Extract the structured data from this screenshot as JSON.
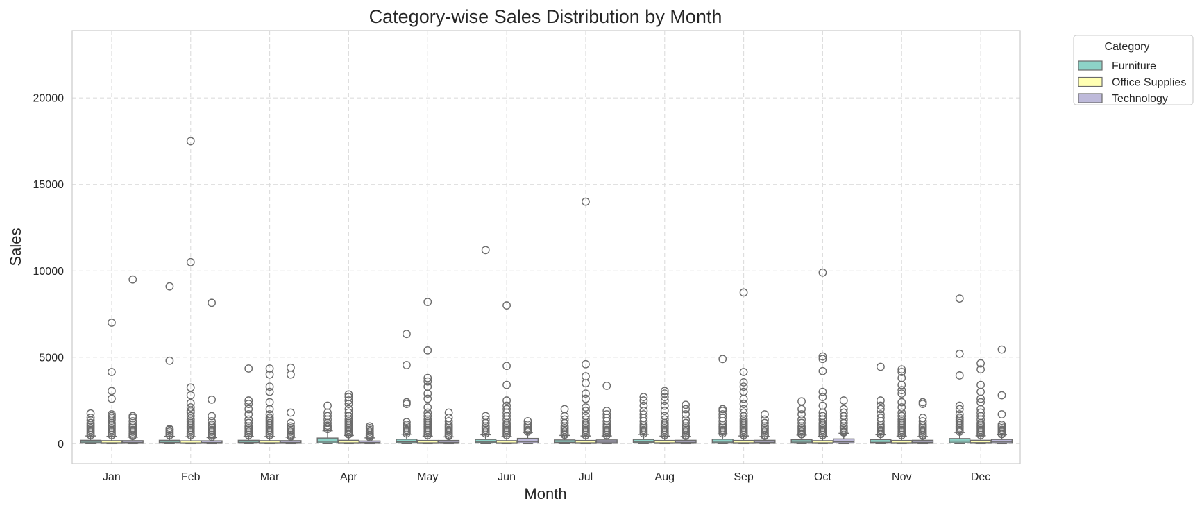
{
  "chart_data": {
    "type": "box",
    "title": "Category-wise Sales Distribution by Month",
    "xlabel": "Month",
    "ylabel": "Sales",
    "categories": [
      "Jan",
      "Feb",
      "Mar",
      "Apr",
      "May",
      "Jun",
      "Jul",
      "Aug",
      "Sep",
      "Oct",
      "Nov",
      "Dec"
    ],
    "ylim": [
      -1150,
      23900
    ],
    "yticks": [
      0,
      5000,
      10000,
      15000,
      20000
    ],
    "ytick_labels": [
      "0",
      "5000",
      "10000",
      "15000",
      "20000"
    ],
    "grid": true,
    "legend": {
      "title": "Category",
      "placement": "outside-top-right"
    },
    "series": [
      {
        "name": "Furniture",
        "color": "#8dd3c7",
        "boxes": [
          {
            "q1": 30,
            "median": 90,
            "q3": 200,
            "whisker_low": 2,
            "whisker_high": 450,
            "outliers": [
              500,
              600,
              700,
              800,
              900,
              1000,
              1100,
              1200,
              1350,
              1500,
              1750
            ]
          },
          {
            "q1": 30,
            "median": 80,
            "q3": 200,
            "whisker_low": 2,
            "whisker_high": 430,
            "outliers": [
              500,
              600,
              700,
              800,
              850,
              4800,
              9100
            ]
          },
          {
            "q1": 30,
            "median": 80,
            "q3": 200,
            "whisker_low": 2,
            "whisker_high": 430,
            "outliers": [
              500,
              600,
              700,
              800,
              900,
              1000,
              1200,
              1400,
              1700,
              2000,
              2300,
              2500,
              4350
            ]
          },
          {
            "q1": 50,
            "median": 140,
            "q3": 330,
            "whisker_low": 2,
            "whisker_high": 750,
            "outliers": [
              850,
              950,
              1050,
              1200,
              1400,
              1600,
              1800,
              2200
            ]
          },
          {
            "q1": 40,
            "median": 110,
            "q3": 260,
            "whisker_low": 2,
            "whisker_high": 550,
            "outliers": [
              600,
              700,
              800,
              900,
              1000,
              1100,
              1250,
              2300,
              2400,
              4550,
              6350
            ]
          },
          {
            "q1": 40,
            "median": 100,
            "q3": 250,
            "whisker_low": 2,
            "whisker_high": 520,
            "outliers": [
              600,
              700,
              800,
              900,
              1000,
              1200,
              1400,
              1600,
              11200
            ]
          },
          {
            "q1": 30,
            "median": 80,
            "q3": 220,
            "whisker_low": 2,
            "whisker_high": 480,
            "outliers": [
              520,
              600,
              700,
              800,
              900,
              1000,
              1200,
              1400,
              1600,
              2000
            ]
          },
          {
            "q1": 40,
            "median": 100,
            "q3": 250,
            "whisker_low": 2,
            "whisker_high": 540,
            "outliers": [
              600,
              700,
              800,
              900,
              1000,
              1100,
              1300,
              1500,
              1700,
              1900,
              2200,
              2500,
              2700
            ]
          },
          {
            "q1": 30,
            "median": 90,
            "q3": 260,
            "whisker_low": 2,
            "whisker_high": 560,
            "outliers": [
              600,
              700,
              800,
              900,
              1000,
              1100,
              1300,
              1500,
              1700,
              1900,
              2000,
              4900
            ]
          },
          {
            "q1": 30,
            "median": 90,
            "q3": 230,
            "whisker_low": 2,
            "whisker_high": 500,
            "outliers": [
              550,
              600,
              700,
              800,
              900,
              1000,
              1200,
              1400,
              1700,
              2000,
              2450
            ]
          },
          {
            "q1": 30,
            "median": 80,
            "q3": 240,
            "whisker_low": 2,
            "whisker_high": 520,
            "outliers": [
              560,
              600,
              700,
              800,
              900,
              1000,
              1100,
              1300,
              1500,
              1700,
              2000,
              2200,
              2500,
              4450
            ]
          },
          {
            "q1": 50,
            "median": 150,
            "q3": 300,
            "whisker_low": 2,
            "whisker_high": 650,
            "outliers": [
              700,
              800,
              900,
              1000,
              1100,
              1200,
              1300,
              1400,
              1500,
              1700,
              2000,
              2200,
              3950,
              5200,
              8400
            ]
          }
        ]
      },
      {
        "name": "Office Supplies",
        "color": "#ffffb3",
        "boxes": [
          {
            "q1": 15,
            "median": 50,
            "q3": 180,
            "whisker_low": 1,
            "whisker_high": 430,
            "outliers": [
              500,
              600,
              700,
              800,
              900,
              1000,
              1100,
              1200,
              1400,
              1500,
              1600,
              1700,
              2600,
              3050,
              4150,
              7000
            ]
          },
          {
            "q1": 15,
            "median": 45,
            "q3": 170,
            "whisker_low": 1,
            "whisker_high": 410,
            "outliers": [
              500,
              600,
              700,
              800,
              900,
              1000,
              1100,
              1200,
              1300,
              1400,
              1600,
              1800,
              1900,
              2100,
              2350,
              2800,
              3250,
              10500,
              17500
            ]
          },
          {
            "q1": 15,
            "median": 50,
            "q3": 180,
            "whisker_low": 1,
            "whisker_high": 420,
            "outliers": [
              500,
              600,
              700,
              800,
              900,
              1000,
              1100,
              1200,
              1300,
              1400,
              1500,
              1700,
              2000,
              2400,
              3000,
              3300,
              4000,
              4350
            ]
          },
          {
            "q1": 15,
            "median": 50,
            "q3": 200,
            "whisker_low": 1,
            "whisker_high": 480,
            "outliers": [
              550,
              600,
              700,
              800,
              900,
              1000,
              1100,
              1200,
              1300,
              1400,
              1600,
              1800,
              2000,
              2300,
              2500,
              2700,
              2850
            ]
          },
          {
            "q1": 15,
            "median": 50,
            "q3": 190,
            "whisker_low": 1,
            "whisker_high": 440,
            "outliers": [
              500,
              600,
              700,
              800,
              900,
              1000,
              1100,
              1200,
              1300,
              1400,
              1600,
              1800,
              2100,
              2600,
              2900,
              3300,
              3600,
              3800,
              5400,
              8200
            ]
          },
          {
            "q1": 15,
            "median": 45,
            "q3": 180,
            "whisker_low": 1,
            "whisker_high": 420,
            "outliers": [
              500,
              600,
              700,
              800,
              900,
              1000,
              1100,
              1200,
              1400,
              1600,
              1800,
              2000,
              2200,
              2500,
              3400,
              4500,
              8000
            ]
          },
          {
            "q1": 15,
            "median": 50,
            "q3": 190,
            "whisker_low": 1,
            "whisker_high": 450,
            "outliers": [
              500,
              600,
              700,
              800,
              900,
              1000,
              1100,
              1200,
              1400,
              1600,
              1900,
              2100,
              2600,
              2900,
              3500,
              3900,
              4600,
              14000
            ]
          },
          {
            "q1": 15,
            "median": 50,
            "q3": 190,
            "whisker_low": 1,
            "whisker_high": 440,
            "outliers": [
              500,
              600,
              700,
              800,
              900,
              1000,
              1100,
              1200,
              1400,
              1600,
              1900,
              2200,
              2500,
              2700,
              2900,
              3050
            ]
          },
          {
            "q1": 15,
            "median": 50,
            "q3": 190,
            "whisker_low": 1,
            "whisker_high": 450,
            "outliers": [
              500,
              600,
              700,
              800,
              900,
              1000,
              1100,
              1200,
              1300,
              1400,
              1600,
              1800,
              2000,
              2300,
              2600,
              3000,
              3300,
              3550,
              4150,
              8750
            ]
          },
          {
            "q1": 15,
            "median": 50,
            "q3": 180,
            "whisker_low": 1,
            "whisker_high": 430,
            "outliers": [
              500,
              600,
              700,
              800,
              900,
              1000,
              1100,
              1200,
              1400,
              1600,
              1800,
              2200,
              2700,
              3000,
              4200,
              4900,
              5050,
              9900
            ]
          },
          {
            "q1": 15,
            "median": 50,
            "q3": 190,
            "whisker_low": 1,
            "whisker_high": 440,
            "outliers": [
              500,
              600,
              700,
              800,
              900,
              1000,
              1100,
              1200,
              1300,
              1400,
              1600,
              1800,
              2100,
              2400,
              2900,
              3100,
              3400,
              3800,
              4150,
              4300
            ]
          },
          {
            "q1": 20,
            "median": 60,
            "q3": 200,
            "whisker_low": 1,
            "whisker_high": 460,
            "outliers": [
              500,
              600,
              700,
              800,
              900,
              1000,
              1100,
              1200,
              1400,
              1600,
              1800,
              2000,
              2400,
              2600,
              3000,
              3400,
              4300,
              4650
            ]
          }
        ]
      },
      {
        "name": "Technology",
        "color": "#bebada",
        "boxes": [
          {
            "q1": 20,
            "median": 80,
            "q3": 180,
            "whisker_low": 1,
            "whisker_high": 380,
            "outliers": [
              450,
              500,
              600,
              700,
              800,
              900,
              1000,
              1100,
              1300,
              1500,
              1600,
              9500
            ]
          },
          {
            "q1": 20,
            "median": 70,
            "q3": 170,
            "whisker_low": 1,
            "whisker_high": 360,
            "outliers": [
              400,
              500,
              600,
              700,
              800,
              900,
              1000,
              1100,
              1300,
              1600,
              2550,
              8150
            ]
          },
          {
            "q1": 20,
            "median": 75,
            "q3": 180,
            "whisker_low": 1,
            "whisker_high": 380,
            "outliers": [
              420,
              500,
              600,
              700,
              800,
              900,
              1000,
              1200,
              1800,
              4000,
              4400
            ]
          },
          {
            "q1": 20,
            "median": 70,
            "q3": 160,
            "whisker_low": 1,
            "whisker_high": 340,
            "outliers": [
              380,
              450,
              500,
              600,
              700,
              800,
              900,
              1000
            ]
          },
          {
            "q1": 20,
            "median": 80,
            "q3": 190,
            "whisker_low": 1,
            "whisker_high": 400,
            "outliers": [
              450,
              500,
              600,
              700,
              800,
              900,
              1000,
              1100,
              1300,
              1500,
              1800
            ]
          },
          {
            "q1": 40,
            "median": 130,
            "q3": 310,
            "whisker_low": 1,
            "whisker_high": 650,
            "outliers": [
              700,
              800,
              900,
              1000,
              1100,
              1300
            ]
          },
          {
            "q1": 25,
            "median": 90,
            "q3": 220,
            "whisker_low": 1,
            "whisker_high": 450,
            "outliers": [
              500,
              600,
              700,
              800,
              900,
              1000,
              1100,
              1300,
              1500,
              1700,
              1900,
              3350
            ]
          },
          {
            "q1": 20,
            "median": 80,
            "q3": 200,
            "whisker_low": 1,
            "whisker_high": 420,
            "outliers": [
              460,
              500,
              600,
              700,
              800,
              900,
              1000,
              1200,
              1400,
              1700,
              2000,
              2250
            ]
          },
          {
            "q1": 20,
            "median": 80,
            "q3": 200,
            "whisker_low": 1,
            "whisker_high": 420,
            "outliers": [
              460,
              500,
              600,
              700,
              800,
              900,
              1000,
              1200,
              1400,
              1700
            ]
          },
          {
            "q1": 40,
            "median": 120,
            "q3": 280,
            "whisker_low": 1,
            "whisker_high": 600,
            "outliers": [
              650,
              700,
              800,
              900,
              1000,
              1200,
              1400,
              1600,
              1800,
              2000,
              2500
            ]
          },
          {
            "q1": 20,
            "median": 80,
            "q3": 200,
            "whisker_low": 1,
            "whisker_high": 420,
            "outliers": [
              460,
              500,
              600,
              700,
              800,
              900,
              1000,
              1100,
              1300,
              1500,
              2300,
              2400
            ]
          },
          {
            "q1": 30,
            "median": 100,
            "q3": 250,
            "whisker_low": 1,
            "whisker_high": 520,
            "outliers": [
              560,
              600,
              700,
              800,
              900,
              1000,
              1100,
              1700,
              2800,
              5450
            ]
          }
        ]
      }
    ]
  }
}
